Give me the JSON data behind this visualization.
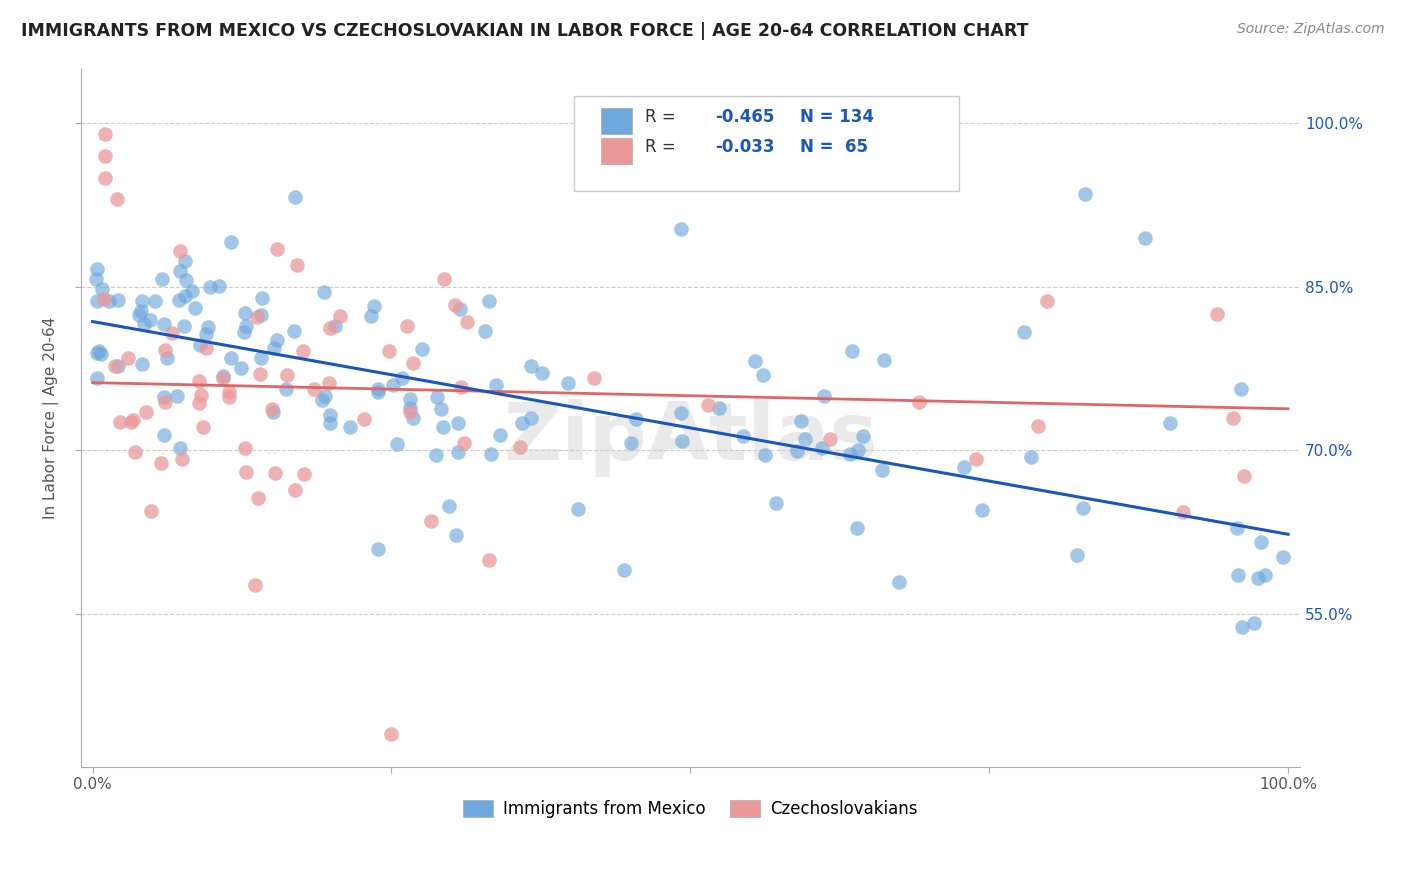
{
  "title": "IMMIGRANTS FROM MEXICO VS CZECHOSLOVAKIAN IN LABOR FORCE | AGE 20-64 CORRELATION CHART",
  "source": "Source: ZipAtlas.com",
  "ylabel": "In Labor Force | Age 20-64",
  "right_ytick_labels": [
    "100.0%",
    "85.0%",
    "70.0%",
    "55.0%"
  ],
  "right_ytick_values": [
    1.0,
    0.85,
    0.7,
    0.55
  ],
  "xlim": [
    -0.01,
    1.01
  ],
  "ylim": [
    0.41,
    1.05
  ],
  "mexico_color": "#6fa8dc",
  "czech_color": "#ea9999",
  "mexico_line_color": "#1a56bb",
  "czech_line_color": "#e06666",
  "R_mexico": -0.465,
  "N_mexico": 134,
  "R_czech": -0.033,
  "N_czech": 65,
  "legend_R_color": "#1a56bb",
  "background_color": "#ffffff",
  "watermark": "ZipAtlas",
  "mexico_line_x0": 0.0,
  "mexico_line_y0": 0.818,
  "mexico_line_x1": 1.0,
  "mexico_line_y1": 0.623,
  "czech_line_x0": 0.0,
  "czech_line_y0": 0.762,
  "czech_line_x1": 1.0,
  "czech_line_y1": 0.738
}
